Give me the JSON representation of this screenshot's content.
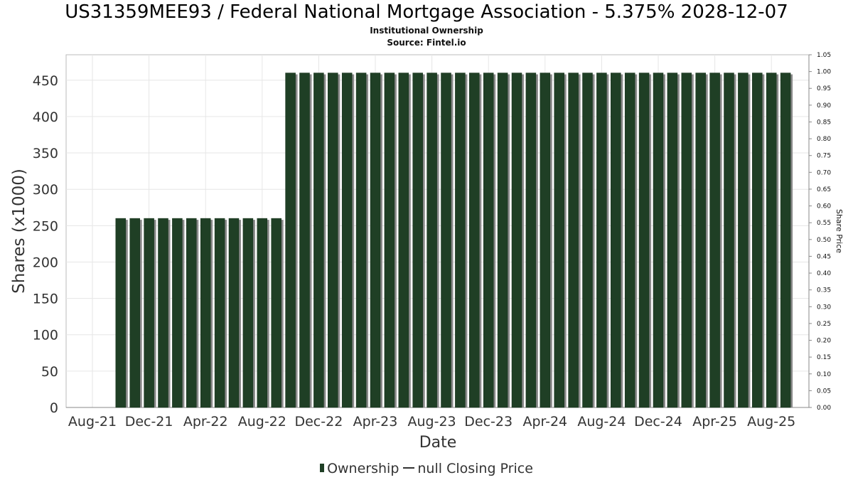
{
  "title": "US31359MEE93 / Federal National Mortgage Association - 5.375% 2028-12-07",
  "subtitle": "Institutional Ownership",
  "source": "Source: Fintel.io",
  "legend": {
    "ownership": "Ownership",
    "price": "null Closing Price"
  },
  "colors": {
    "bar": "#1f3f25",
    "bar_shadow": "#8a8a8a",
    "grid": "#e6e6e6",
    "axis": "#888888"
  },
  "chart_data": {
    "type": "bar",
    "xlabel": "Date",
    "ylabel": "Shares (x1000)",
    "y2label": "Share Price",
    "ylim": [
      0,
      485
    ],
    "y2lim": [
      0,
      1.05
    ],
    "yticks": [
      0,
      50,
      100,
      150,
      200,
      250,
      300,
      350,
      400,
      450
    ],
    "y2ticks": [
      "0.00",
      "0.05",
      "0.10",
      "0.15",
      "0.20",
      "0.25",
      "0.30",
      "0.35",
      "0.40",
      "0.45",
      "0.50",
      "0.55",
      "0.60",
      "0.65",
      "0.70",
      "0.75",
      "0.80",
      "0.85",
      "0.90",
      "0.95",
      "1.00",
      "1.05"
    ],
    "xticks": [
      "Aug-21",
      "Dec-21",
      "Apr-22",
      "Aug-22",
      "Dec-22",
      "Apr-23",
      "Aug-23",
      "Dec-23",
      "Apr-24",
      "Aug-24",
      "Dec-24",
      "Apr-25",
      "Aug-25"
    ],
    "grid": true,
    "legend_position": "bottom",
    "series": [
      {
        "name": "Ownership",
        "start": "2021-10",
        "values": [
          260,
          260,
          260,
          260,
          260,
          260,
          260,
          260,
          260,
          260,
          260,
          260,
          460,
          460,
          460,
          460,
          460,
          460,
          460,
          460,
          460,
          460,
          460,
          460,
          460,
          460,
          460,
          460,
          460,
          460,
          460,
          460,
          460,
          460,
          460,
          460,
          460,
          460,
          460,
          460,
          460,
          460,
          460,
          460,
          460,
          460,
          460,
          460
        ]
      }
    ]
  }
}
